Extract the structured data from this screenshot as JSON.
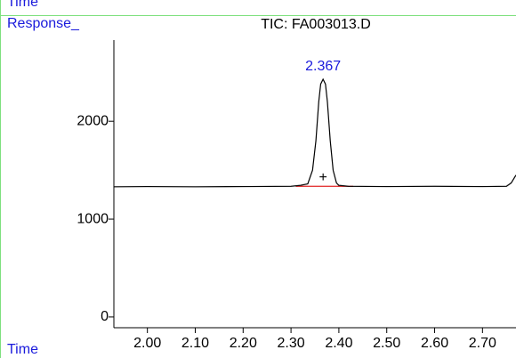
{
  "chart_data": {
    "type": "line",
    "top_label": "Time",
    "y_label": "Response_",
    "title": "TIC: FA003013.D",
    "x_label": "Time",
    "peak_label": {
      "x": 2.367,
      "value": 2430,
      "label": "2.367"
    },
    "peak_marker": {
      "x": 2.367,
      "value": 1420,
      "label": "+"
    },
    "baseline": {
      "x": [
        2.31,
        2.43
      ],
      "values": [
        1335,
        1335
      ],
      "color": "#e02020"
    },
    "x": [
      1.93,
      2.0,
      2.1,
      2.2,
      2.3,
      2.32,
      2.335,
      2.345,
      2.352,
      2.358,
      2.362,
      2.367,
      2.372,
      2.376,
      2.382,
      2.388,
      2.395,
      2.4,
      2.42,
      2.5,
      2.6,
      2.7,
      2.75,
      2.76,
      2.77
    ],
    "series": [
      {
        "color": "#000000",
        "values": [
          1330,
          1332,
          1330,
          1332,
          1335,
          1345,
          1360,
          1500,
          1800,
          2200,
          2380,
          2430,
          2380,
          2200,
          1800,
          1500,
          1370,
          1345,
          1335,
          1332,
          1335,
          1332,
          1335,
          1370,
          1450
        ]
      }
    ],
    "xlim": [
      1.93,
      2.77
    ],
    "ylim": [
      -110,
      2830
    ],
    "xticks": [
      {
        "value": 2.0,
        "label": "2.00"
      },
      {
        "value": 2.1,
        "label": "2.10"
      },
      {
        "value": 2.2,
        "label": "2.20"
      },
      {
        "value": 2.3,
        "label": "2.30"
      },
      {
        "value": 2.4,
        "label": "2.40"
      },
      {
        "value": 2.5,
        "label": "2.50"
      },
      {
        "value": 2.6,
        "label": "2.60"
      },
      {
        "value": 2.7,
        "label": "2.70"
      }
    ],
    "yticks": [
      0,
      1000,
      2000
    ]
  }
}
